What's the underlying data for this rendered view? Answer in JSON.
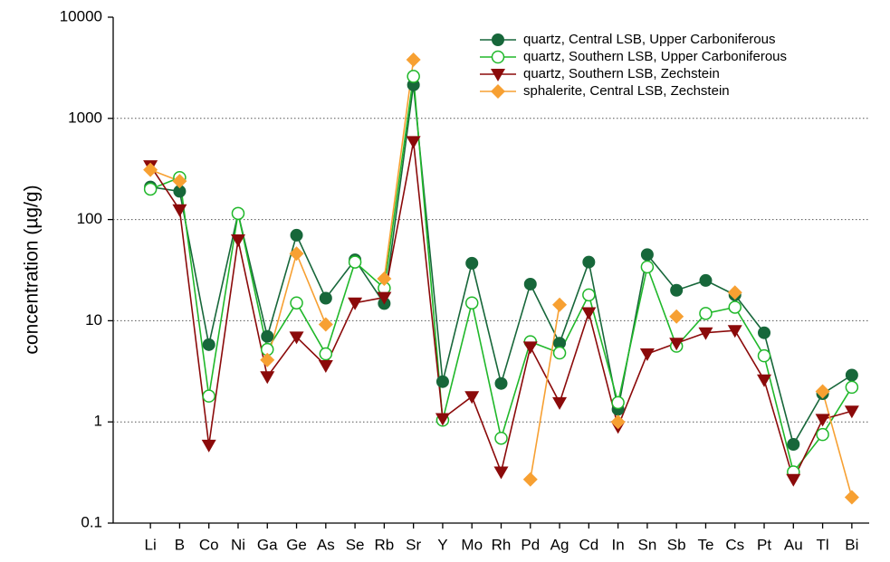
{
  "chart_data": {
    "type": "line",
    "y_label": "concentration (µg/g)",
    "categories": [
      "Li",
      "B",
      "Co",
      "Ni",
      "Ga",
      "Ge",
      "As",
      "Se",
      "Rb",
      "Sr",
      "Y",
      "Mo",
      "Rh",
      "Pd",
      "Ag",
      "Cd",
      "In",
      "Sn",
      "Sb",
      "Te",
      "Cs",
      "Pt",
      "Au",
      "Tl",
      "Bi"
    ],
    "log_scale": true,
    "grid": true,
    "legend": "top-right",
    "ylim": [
      0.1,
      10000
    ],
    "yticks": [
      0.1,
      1,
      10,
      100,
      1000,
      10000
    ],
    "series": [
      {
        "name": "quartz, Central LSB, Upper Carboniferous",
        "color": "#17673a",
        "marker": "circle",
        "values": [
          210,
          190,
          5.8,
          115,
          7.0,
          70,
          16.7,
          40,
          14.8,
          2140,
          2.5,
          37,
          2.4,
          23,
          6.0,
          38,
          1.33,
          45,
          20,
          25,
          18,
          7.6,
          0.6,
          1.9,
          2.9
        ]
      },
      {
        "name": "quartz, Southern LSB, Upper Carboniferous",
        "color": "#20b82a",
        "marker": "circle-open",
        "values": [
          200,
          260,
          1.8,
          115,
          5.2,
          15,
          4.7,
          38,
          21,
          2600,
          1.04,
          15,
          0.69,
          6.2,
          4.8,
          18,
          1.55,
          34,
          5.6,
          11.8,
          13.6,
          4.5,
          0.32,
          0.75,
          2.2
        ]
      },
      {
        "name": "quartz, Southern LSB, Zechstein",
        "color": "#8b0a0a",
        "marker": "triangle-down",
        "values": [
          340,
          125,
          0.59,
          63,
          2.8,
          6.9,
          3.6,
          15,
          17,
          590,
          1.08,
          1.78,
          0.32,
          5.5,
          1.55,
          12,
          0.9,
          4.7,
          6.0,
          7.6,
          8.0,
          2.6,
          0.27,
          1.06,
          1.28
        ]
      },
      {
        "name": "sphalerite, Central LSB, Zechstein",
        "color": "#f7a032",
        "marker": "diamond",
        "values": [
          310,
          240,
          null,
          null,
          4.1,
          46,
          9.2,
          null,
          26,
          3800,
          null,
          null,
          null,
          0.27,
          14.4,
          null,
          1.0,
          null,
          11,
          null,
          19,
          null,
          null,
          2.0,
          0.18
        ]
      }
    ]
  }
}
